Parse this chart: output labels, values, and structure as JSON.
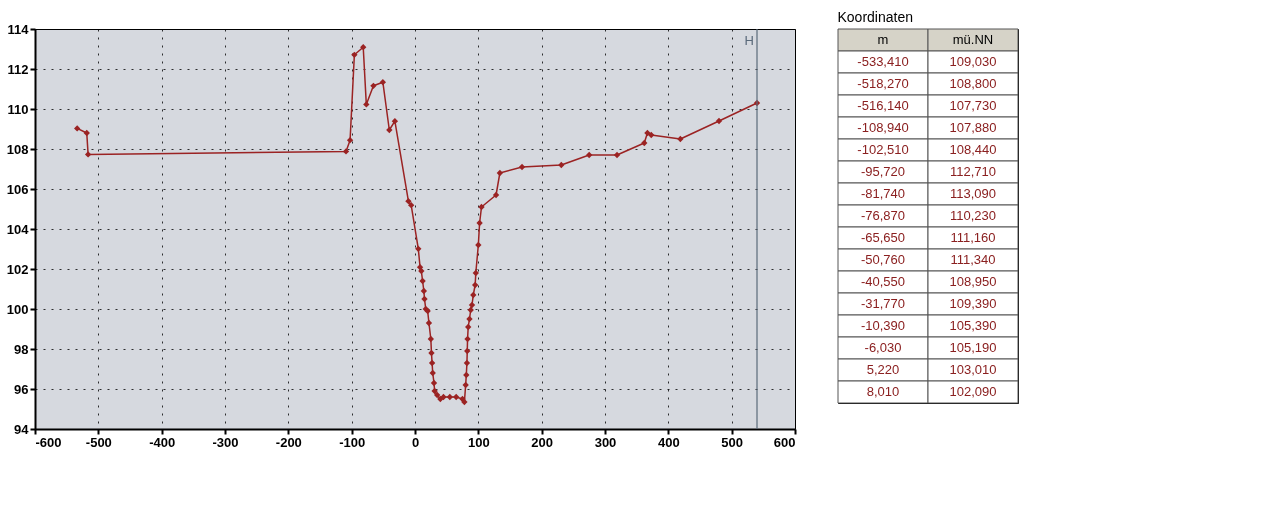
{
  "chart_data": [
    {
      "type": "line",
      "marker": "diamond",
      "line_style": "solid",
      "grid": true,
      "xlim": [
        -600,
        600
      ],
      "xticks": [
        -600,
        -500,
        -400,
        -300,
        -200,
        -100,
        0,
        100,
        200,
        300,
        400,
        500,
        600
      ],
      "ylim": [
        94,
        114
      ],
      "yticks": [
        94,
        96,
        98,
        100,
        102,
        104,
        106,
        108,
        110,
        112,
        114
      ],
      "ref_lines": [
        {
          "axis": "x",
          "value": 540,
          "label": "H",
          "color": "#5a6a7a",
          "line_style": "solid"
        }
      ],
      "series": [
        {
          "color": "#9b2323",
          "x": [
            -533.41,
            -518.27,
            -516.14,
            -108.94,
            -102.51,
            -95.72,
            -81.74,
            -76.87,
            -65.65,
            -50.76,
            -40.55,
            -31.77,
            -10.39,
            -6.03,
            5.22,
            8.01,
            10,
            12,
            14,
            15,
            17,
            20,
            22,
            25,
            26,
            27,
            28,
            30,
            31,
            35,
            40,
            45,
            55,
            65,
            75,
            78,
            80,
            81,
            82,
            82.5,
            83,
            84,
            86,
            88,
            90,
            92,
            95,
            96,
            100,
            102,
            105,
            128,
            134,
            169,
            231,
            275,
            319,
            362,
            367,
            373,
            419,
            480,
            540
          ],
          "values": [
            109.03,
            108.8,
            107.73,
            107.88,
            108.44,
            112.71,
            113.09,
            110.23,
            111.16,
            111.34,
            108.95,
            109.39,
            105.39,
            105.19,
            103.01,
            102.09,
            101.9,
            101.4,
            100.9,
            100.5,
            100.0,
            99.9,
            99.3,
            98.5,
            97.8,
            97.3,
            96.8,
            96.3,
            95.9,
            95.7,
            95.5,
            95.6,
            95.6,
            95.6,
            95.5,
            95.35,
            96.2,
            96.7,
            97.3,
            97.9,
            98.5,
            99.1,
            99.5,
            99.95,
            100.2,
            100.7,
            101.2,
            101.8,
            103.2,
            104.3,
            105.1,
            105.7,
            106.8,
            107.1,
            107.2,
            107.7,
            107.7,
            108.3,
            108.8,
            108.7,
            108.5,
            109.4,
            110.3
          ]
        }
      ]
    },
    {
      "type": "other",
      "title": "Koordinaten",
      "annotations": [
        "m",
        "mü.NN",
        "-533,410",
        "109,030",
        "-518,270",
        "108,800",
        "-516,140",
        "107,730",
        "-108,940",
        "107,880",
        "-102,510",
        "108,440",
        "-95,720",
        "112,710",
        "-81,740",
        "113,090",
        "-76,870",
        "110,230",
        "-65,650",
        "111,160",
        "-50,760",
        "111,340",
        "-40,550",
        "108,950",
        "-31,770",
        "109,390",
        "-10,390",
        "105,390",
        "-6,030",
        "105,190",
        "5,220",
        "103,010",
        "8,010",
        "102,090"
      ]
    }
  ]
}
